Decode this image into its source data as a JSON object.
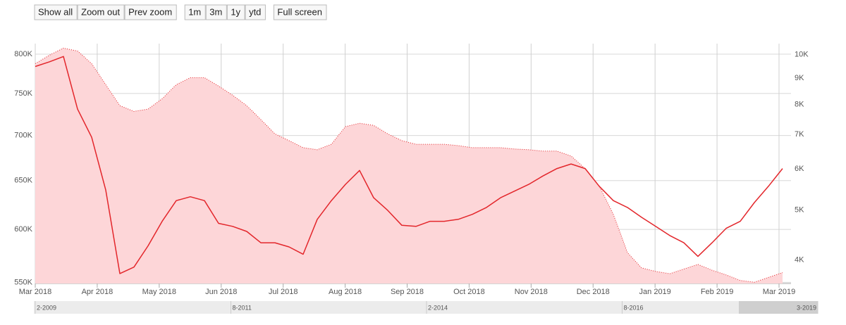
{
  "toolbar": {
    "groups": [
      [
        "Show all",
        "Zoom out",
        "Prev zoom"
      ],
      [
        "1m",
        "3m",
        "1y",
        "ytd"
      ],
      [
        "Full screen"
      ]
    ]
  },
  "chart_data": {
    "type": "line",
    "xticks": [
      "Mar 2018",
      "Apr 2018",
      "May 2018",
      "Jun 2018",
      "Jul 2018",
      "Aug 2018",
      "Sep 2018",
      "Oct 2018",
      "Nov 2018",
      "Dec 2018",
      "Jan 2019",
      "Feb 2019",
      "Mar 2019"
    ],
    "ylim": [
      549000,
      814000
    ],
    "y2lim": [
      3600,
      10500
    ],
    "log_y": true,
    "log_y2": true,
    "grid": true,
    "yticks": [
      {
        "value": 550000,
        "label": "550K"
      },
      {
        "value": 600000,
        "label": "600K"
      },
      {
        "value": 650000,
        "label": "650K"
      },
      {
        "value": 700000,
        "label": "700K"
      },
      {
        "value": 750000,
        "label": "750K"
      },
      {
        "value": 800000,
        "label": "800K"
      }
    ],
    "y2ticks": [
      {
        "value": 4000,
        "label": "4K"
      },
      {
        "value": 5000,
        "label": "5K"
      },
      {
        "value": 6000,
        "label": "6K"
      },
      {
        "value": 7000,
        "label": "7K"
      },
      {
        "value": 8000,
        "label": "8K"
      },
      {
        "value": 9000,
        "label": "9K"
      },
      {
        "value": 10000,
        "label": "10K"
      }
    ],
    "series": [
      {
        "type": "area",
        "axis": "y2",
        "color": "#e3262b",
        "fill": "#fdd6d8",
        "line_style": "dotted",
        "values": [
          9600,
          9970,
          10290,
          10160,
          9600,
          8740,
          7960,
          7760,
          7840,
          8210,
          8740,
          9020,
          9020,
          8690,
          8340,
          7960,
          7480,
          7020,
          6810,
          6600,
          6540,
          6700,
          7250,
          7360,
          7290,
          7020,
          6810,
          6700,
          6700,
          6700,
          6660,
          6600,
          6600,
          6600,
          6560,
          6540,
          6500,
          6500,
          6360,
          6010,
          5560,
          4900,
          4130,
          3860,
          3800,
          3760,
          3840,
          3920,
          3820,
          3740,
          3650,
          3620,
          3700,
          3780
        ]
      },
      {
        "type": "line",
        "color": "#e3262b",
        "values": [
          784000,
          790000,
          797000,
          731000,
          698000,
          640000,
          558000,
          564000,
          584000,
          608000,
          629000,
          633000,
          629000,
          606000,
          603000,
          598000,
          587000,
          587000,
          583000,
          576000,
          610000,
          629000,
          646000,
          661000,
          632000,
          619000,
          604000,
          603000,
          608000,
          608000,
          610000,
          615000,
          622000,
          632000,
          639000,
          646000,
          655000,
          663000,
          668000,
          663000,
          644000,
          629000,
          622000,
          612000,
          603000,
          594000,
          587000,
          574000,
          587000,
          601000,
          608000,
          627000,
          644000,
          663000
        ]
      }
    ]
  },
  "navigator": {
    "labels": [
      "2-2009",
      "8-2011",
      "2-2014",
      "8-2016",
      "3-2019"
    ]
  }
}
